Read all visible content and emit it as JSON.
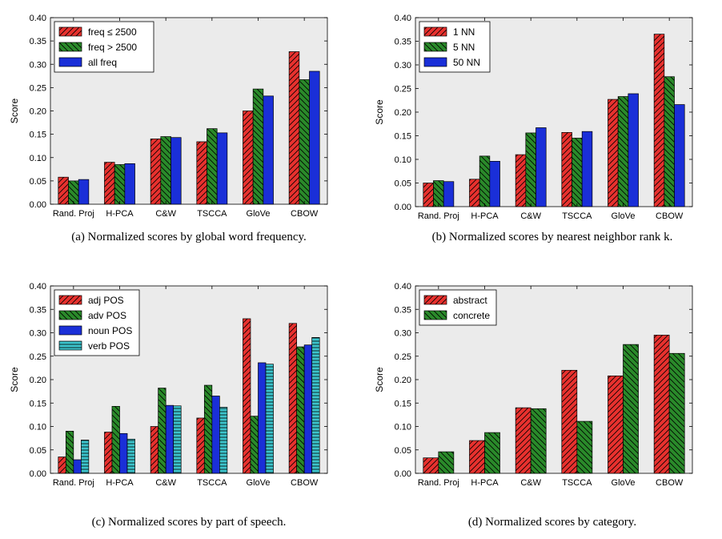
{
  "colors": {
    "plot_bg": "#ebebeb",
    "red": "#e8312e",
    "green": "#2a8a2a",
    "blue": "#1a2fd8",
    "cyan": "#3cc4cc"
  },
  "chart_data": [
    {
      "id": "a",
      "type": "bar",
      "caption": "(a)  Normalized scores by global word frequency.",
      "ylabel": "Score",
      "ylim": [
        0,
        0.4
      ],
      "yticks": [
        "0.00",
        "0.05",
        "0.10",
        "0.15",
        "0.20",
        "0.25",
        "0.30",
        "0.35",
        "0.40"
      ],
      "categories": [
        "Rand. Proj",
        "H-PCA",
        "C&W",
        "TSCCA",
        "GloVe",
        "CBOW"
      ],
      "legend_position": "top-left",
      "grid": false,
      "series": [
        {
          "name": "freq ≤ 2500",
          "color": "#e8312e",
          "hatch": "forward",
          "values": [
            0.058,
            0.09,
            0.14,
            0.134,
            0.2,
            0.327
          ]
        },
        {
          "name": "freq > 2500",
          "color": "#2a8a2a",
          "hatch": "back",
          "values": [
            0.05,
            0.085,
            0.145,
            0.162,
            0.247,
            0.267
          ]
        },
        {
          "name": "all freq",
          "color": "#1a2fd8",
          "hatch": "none",
          "values": [
            0.053,
            0.087,
            0.143,
            0.153,
            0.232,
            0.285
          ]
        }
      ]
    },
    {
      "id": "b",
      "type": "bar",
      "caption": "(b)  Normalized scores by nearest neighbor rank k.",
      "ylabel": "Score",
      "ylim": [
        0,
        0.4
      ],
      "yticks": [
        "0.00",
        "0.05",
        "0.10",
        "0.15",
        "0.20",
        "0.25",
        "0.30",
        "0.35",
        "0.40"
      ],
      "categories": [
        "Rand. Proj",
        "H-PCA",
        "C&W",
        "TSCCA",
        "GloVe",
        "CBOW"
      ],
      "legend_position": "top-left",
      "grid": false,
      "series": [
        {
          "name": "1 NN",
          "color": "#e8312e",
          "hatch": "forward",
          "values": [
            0.05,
            0.058,
            0.11,
            0.157,
            0.227,
            0.365
          ]
        },
        {
          "name": "5 NN",
          "color": "#2a8a2a",
          "hatch": "back",
          "values": [
            0.055,
            0.107,
            0.156,
            0.145,
            0.233,
            0.275
          ]
        },
        {
          "name": "50 NN",
          "color": "#1a2fd8",
          "hatch": "none",
          "values": [
            0.053,
            0.096,
            0.167,
            0.159,
            0.239,
            0.216
          ]
        }
      ]
    },
    {
      "id": "c",
      "type": "bar",
      "caption": "(c)  Normalized scores by part of speech.",
      "ylabel": "Score",
      "ylim": [
        0,
        0.4
      ],
      "yticks": [
        "0.00",
        "0.05",
        "0.10",
        "0.15",
        "0.20",
        "0.25",
        "0.30",
        "0.35",
        "0.40"
      ],
      "categories": [
        "Rand. Proj",
        "H-PCA",
        "C&W",
        "TSCCA",
        "GloVe",
        "CBOW"
      ],
      "legend_position": "top-left",
      "grid": false,
      "series": [
        {
          "name": "adj POS",
          "color": "#e8312e",
          "hatch": "forward",
          "values": [
            0.035,
            0.088,
            0.1,
            0.118,
            0.33,
            0.32
          ]
        },
        {
          "name": "adv POS",
          "color": "#2a8a2a",
          "hatch": "back",
          "values": [
            0.09,
            0.143,
            0.182,
            0.188,
            0.122,
            0.27
          ]
        },
        {
          "name": "noun POS",
          "color": "#1a2fd8",
          "hatch": "none",
          "values": [
            0.029,
            0.085,
            0.145,
            0.165,
            0.236,
            0.274
          ]
        },
        {
          "name": "verb POS",
          "color": "#3cc4cc",
          "hatch": "horizontal",
          "values": [
            0.071,
            0.073,
            0.144,
            0.141,
            0.233,
            0.29
          ]
        }
      ]
    },
    {
      "id": "d",
      "type": "bar",
      "caption": "(d)  Normalized scores by category.",
      "ylabel": "Score",
      "ylim": [
        0,
        0.4
      ],
      "yticks": [
        "0.00",
        "0.05",
        "0.10",
        "0.15",
        "0.20",
        "0.25",
        "0.30",
        "0.35",
        "0.40"
      ],
      "categories": [
        "Rand. Proj",
        "H-PCA",
        "C&W",
        "TSCCA",
        "GloVe",
        "CBOW"
      ],
      "legend_position": "top-left",
      "grid": false,
      "series": [
        {
          "name": "abstract",
          "color": "#e8312e",
          "hatch": "forward",
          "values": [
            0.033,
            0.07,
            0.14,
            0.22,
            0.208,
            0.295
          ]
        },
        {
          "name": "concrete",
          "color": "#2a8a2a",
          "hatch": "back",
          "values": [
            0.046,
            0.087,
            0.138,
            0.111,
            0.275,
            0.256
          ]
        }
      ]
    }
  ]
}
